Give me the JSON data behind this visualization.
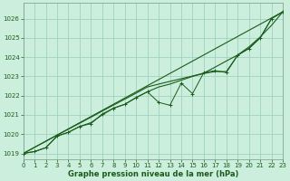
{
  "title": "Graphe pression niveau de la mer (hPa)",
  "bg_color": "#cceedd",
  "grid_color": "#99ccbb",
  "line_color": "#1a5c1a",
  "xlim": [
    0,
    23
  ],
  "ylim": [
    1018.7,
    1026.8
  ],
  "xticks": [
    0,
    1,
    2,
    3,
    4,
    5,
    6,
    7,
    8,
    9,
    10,
    11,
    12,
    13,
    14,
    15,
    16,
    17,
    18,
    19,
    20,
    21,
    22,
    23
  ],
  "yticks": [
    1019,
    1020,
    1021,
    1022,
    1023,
    1024,
    1025,
    1026
  ],
  "hours": [
    0,
    1,
    2,
    3,
    4,
    5,
    6,
    7,
    8,
    9,
    10,
    11,
    12,
    13,
    14,
    15,
    16,
    17,
    18,
    19,
    20,
    21,
    22,
    23
  ],
  "pressure_obs": [
    1019.0,
    1019.1,
    1019.3,
    1019.9,
    1020.1,
    1020.4,
    1020.6,
    1021.0,
    1021.35,
    1021.55,
    1021.9,
    1022.2,
    1022.45,
    1022.6,
    1022.8,
    1023.0,
    1023.15,
    1023.25,
    1023.25,
    1024.1,
    1024.45,
    1025.0,
    1026.0,
    1026.35
  ],
  "pressure_jagged": [
    1019.0,
    1019.1,
    1019.3,
    1019.9,
    1020.1,
    1020.4,
    1020.55,
    1021.05,
    1021.35,
    1021.55,
    1021.9,
    1022.2,
    1021.65,
    1021.5,
    1022.65,
    1022.1,
    1023.2,
    1023.3,
    1023.2,
    1024.1,
    1024.45,
    1025.0,
    1026.0,
    1026.35
  ],
  "pressure_smooth": [
    1019.0,
    1019.32,
    1019.63,
    1019.95,
    1020.26,
    1020.57,
    1020.88,
    1021.2,
    1021.51,
    1021.82,
    1022.13,
    1022.45,
    1022.6,
    1022.74,
    1022.88,
    1023.02,
    1023.17,
    1023.48,
    1023.8,
    1024.11,
    1024.53,
    1025.05,
    1025.65,
    1026.35
  ],
  "tick_fontsize": 5,
  "label_fontsize": 6
}
